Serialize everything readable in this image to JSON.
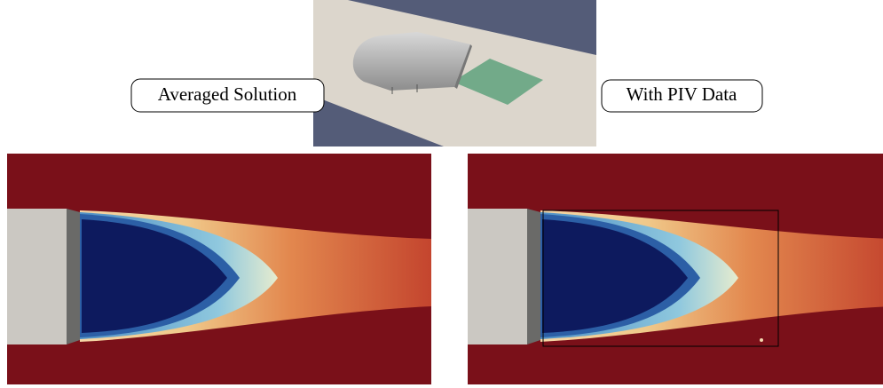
{
  "labels": {
    "left": "Averaged Solution",
    "right": "With PIV Data"
  }
}
